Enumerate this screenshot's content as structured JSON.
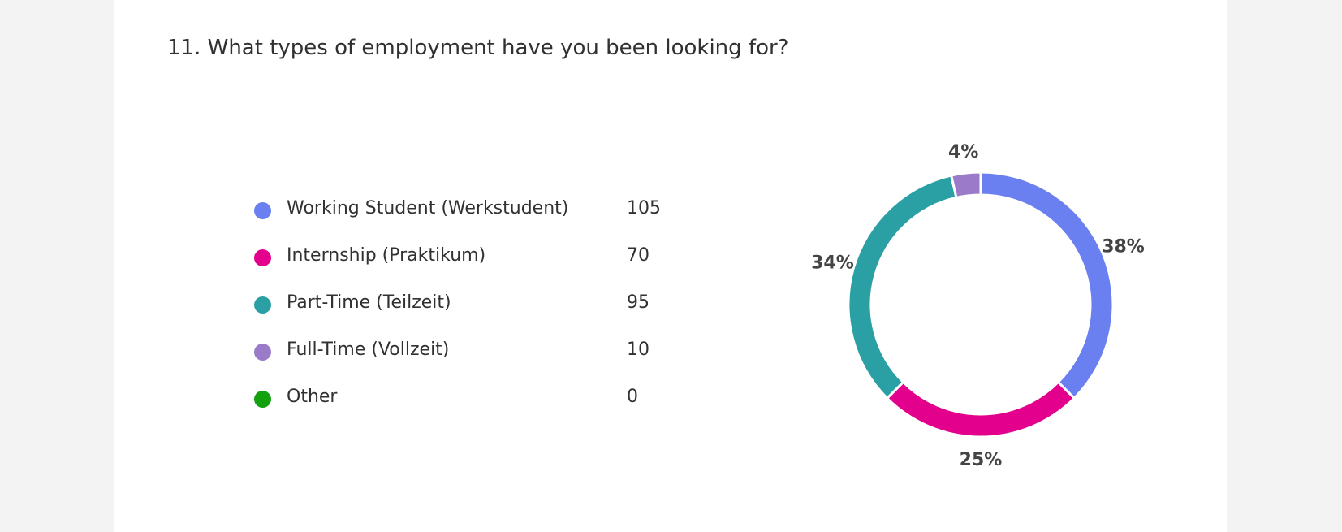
{
  "question": {
    "title": "11. What types of employment have you been looking for?"
  },
  "chart_data": {
    "type": "pie",
    "style": "donut",
    "categories": [
      "Working Student (Werkstudent)",
      "Internship (Praktikum)",
      "Part-Time (Teilzeit)",
      "Full-Time (Vollzeit)",
      "Other"
    ],
    "values": [
      105,
      70,
      95,
      10,
      0
    ],
    "percent_labels": [
      "38%",
      "25%",
      "34%",
      "4%",
      ""
    ],
    "colors": [
      "#6a7ff0",
      "#e3008c",
      "#2aa0a4",
      "#9b7bc9",
      "#13a10e"
    ],
    "legend_position": "left"
  }
}
